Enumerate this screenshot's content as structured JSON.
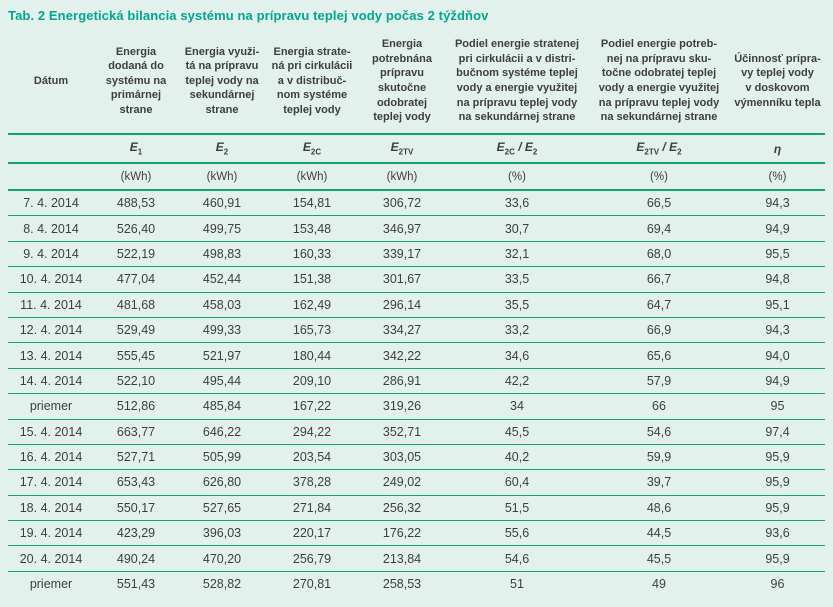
{
  "title": "Tab. 2 Energetická bilancia systému na prípravu teplej vody počas 2 týždňov",
  "colors": {
    "accent_teal": "#00a78e",
    "line_teal": "#14a17c",
    "background_mint": "#e3f1ec",
    "text": "#3e3e3e"
  },
  "table": {
    "columns": [
      {
        "header": "Dátum",
        "symbol_base": "",
        "symbol_sub": "",
        "unit": ""
      },
      {
        "header": "Energia\ndodaná do\nsystému na\nprimárnej\nstrane",
        "symbol_base": "E",
        "symbol_sub": "1",
        "unit": "(kWh)"
      },
      {
        "header": "Energia využi-\ntá na prípravu\nteplej vody na\nsekundárnej\nstrane",
        "symbol_base": "E",
        "symbol_sub": "2",
        "unit": "(kWh)"
      },
      {
        "header": "Energia strate-\nná pri cirkulácii\na v distribuč-\nnom systéme\nteplej vody",
        "symbol_base": "E",
        "symbol_sub": "2C",
        "unit": "(kWh)"
      },
      {
        "header": "Energia\npotrebnána\nprípravu\nskutočne\nodobratej\nteplej vody",
        "symbol_base": "E",
        "symbol_sub": "2TV",
        "unit": "(kWh)"
      },
      {
        "header": "Podiel energie stratenej\npri cirkulácii a v distri-\nbučnom systéme teplej\nvody a energie využitej\nna prípravu teplej vody\nna sekundárnej strane",
        "symbol_base": "E",
        "symbol_sub": "2C",
        "symbol_sep": " / ",
        "symbol_base2": "E",
        "symbol_sub2": "2",
        "unit": "(%)"
      },
      {
        "header": "Podiel energie potreb-\nnej na prípravu sku-\ntočne odobratej teplej\nvody a energie využitej\nna prípravu teplej vody\nna sekundárnej strane",
        "symbol_base": "E",
        "symbol_sub": "2TV",
        "symbol_sep": " / ",
        "symbol_base2": "E",
        "symbol_sub2": "2",
        "unit": "(%)"
      },
      {
        "header": "Účinnosť prípra-\nvy teplej vody\nv doskovom\nvýmenníku tepla",
        "symbol_base": "η",
        "symbol_sub": "",
        "unit": "(%)"
      }
    ],
    "rows": [
      [
        "7. 4. 2014",
        "488,53",
        "460,91",
        "154,81",
        "306,72",
        "33,6",
        "66,5",
        "94,3"
      ],
      [
        "8. 4. 2014",
        "526,40",
        "499,75",
        "153,48",
        "346,97",
        "30,7",
        "69,4",
        "94,9"
      ],
      [
        "9. 4. 2014",
        "522,19",
        "498,83",
        "160,33",
        "339,17",
        "32,1",
        "68,0",
        "95,5"
      ],
      [
        "10. 4. 2014",
        "477,04",
        "452,44",
        "151,38",
        "301,67",
        "33,5",
        "66,7",
        "94,8"
      ],
      [
        "11. 4. 2014",
        "481,68",
        "458,03",
        "162,49",
        "296,14",
        "35,5",
        "64,7",
        "95,1"
      ],
      [
        "12. 4. 2014",
        "529,49",
        "499,33",
        "165,73",
        "334,27",
        "33,2",
        "66,9",
        "94,3"
      ],
      [
        "13. 4. 2014",
        "555,45",
        "521,97",
        "180,44",
        "342,22",
        "34,6",
        "65,6",
        "94,0"
      ],
      [
        "14. 4. 2014",
        "522,10",
        "495,44",
        "209,10",
        "286,91",
        "42,2",
        "57,9",
        "94,9"
      ],
      [
        "priemer",
        "512,86",
        "485,84",
        "167,22",
        "319,26",
        "34",
        "66",
        "95"
      ],
      [
        "15. 4. 2014",
        "663,77",
        "646,22",
        "294,22",
        "352,71",
        "45,5",
        "54,6",
        "97,4"
      ],
      [
        "16. 4. 2014",
        "527,71",
        "505,99",
        "203,54",
        "303,05",
        "40,2",
        "59,9",
        "95,9"
      ],
      [
        "17. 4. 2014",
        "653,43",
        "626,80",
        "378,28",
        "249,02",
        "60,4",
        "39,7",
        "95,9"
      ],
      [
        "18. 4. 2014",
        "550,17",
        "527,65",
        "271,84",
        "256,32",
        "51,5",
        "48,6",
        "95,9"
      ],
      [
        "19. 4. 2014",
        "423,29",
        "396,03",
        "220,17",
        "176,22",
        "55,6",
        "44,5",
        "93,6"
      ],
      [
        "20. 4. 2014",
        "490,24",
        "470,20",
        "256,79",
        "213,84",
        "54,6",
        "45,5",
        "95,9"
      ],
      [
        "priemer",
        "551,43",
        "528,82",
        "270,81",
        "258,53",
        "51",
        "49",
        "96"
      ]
    ]
  }
}
